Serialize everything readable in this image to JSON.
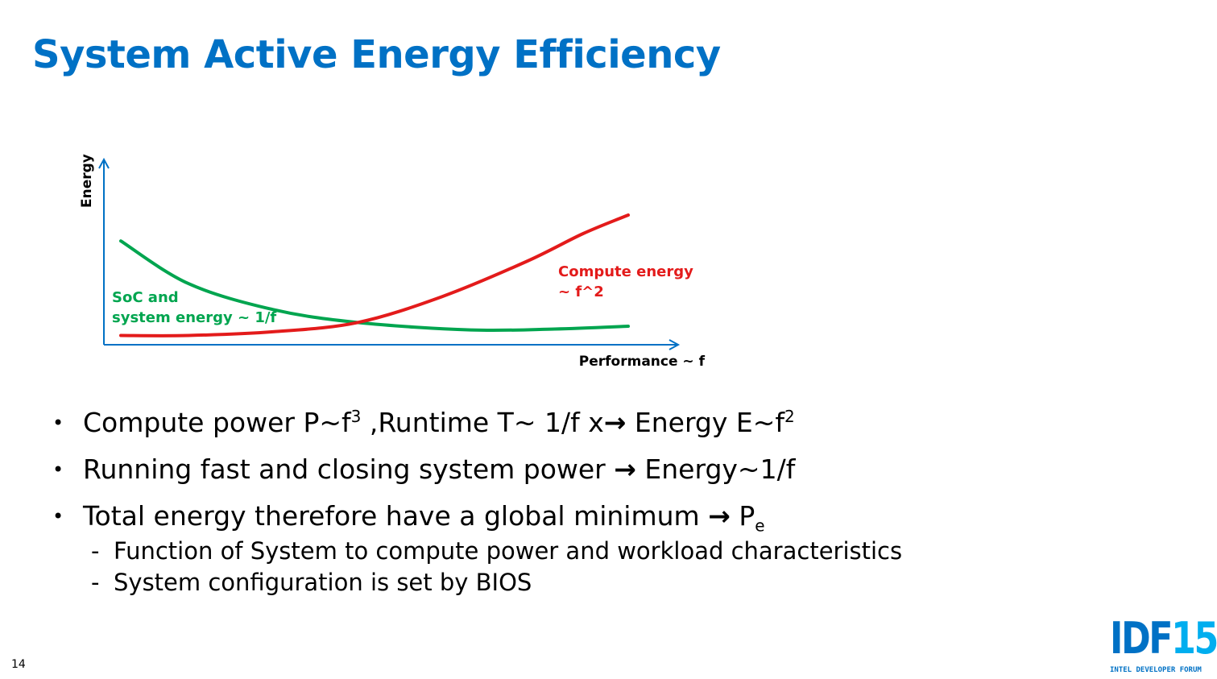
{
  "slide": {
    "title": "System Active Energy Efficiency",
    "page_number": "14"
  },
  "chart_data": {
    "type": "line",
    "xlabel": "Performance ~ f",
    "ylabel": "Energy",
    "grid": false,
    "legend": "none",
    "xlim": [
      0,
      10
    ],
    "ylim": [
      0,
      10
    ],
    "series": [
      {
        "name": "SoC and system energy ~ 1/f",
        "label_lines": [
          "SoC and",
          "system energy ~ 1/f"
        ],
        "color": "#00a54f",
        "x": [
          0.3,
          1.5,
          3.0,
          4.5,
          6.5,
          8.0,
          9.3
        ],
        "y": [
          5.6,
          3.3,
          1.9,
          1.2,
          0.8,
          0.85,
          1.0
        ]
      },
      {
        "name": "Compute energy ~ f^2",
        "label_lines": [
          "Compute energy",
          " ~ f^2"
        ],
        "color": "#e31b1b",
        "x": [
          0.3,
          1.5,
          3.0,
          4.5,
          6.0,
          7.5,
          8.5,
          9.3
        ],
        "y": [
          0.5,
          0.5,
          0.7,
          1.2,
          2.6,
          4.5,
          6.0,
          7.0
        ]
      }
    ]
  },
  "bullets": [
    {
      "pre": "Compute power P~f",
      "sup1": "3",
      "mid": " ,Runtime T~ 1/f x",
      "arrow": "→",
      "post": " Energy E~f",
      "sup2": "2"
    },
    {
      "pre": "Running fast and closing system power ",
      "arrow": "→",
      "post": " Energy~1/f"
    },
    {
      "pre": "Total energy therefore have a global minimum ",
      "arrow": "→",
      "post": " P",
      "sub": "e"
    }
  ],
  "sub_bullets": [
    "Function of System to compute power and workload characteristics",
    "System configuration is set by BIOS"
  ],
  "logo": {
    "main": "IDF",
    "number": "15",
    "tagline": "INTEL DEVELOPER FORUM"
  },
  "colors": {
    "title": "#0071c5",
    "axis": "#0071c5",
    "soc_curve": "#00a54f",
    "compute_curve": "#e31b1b"
  }
}
